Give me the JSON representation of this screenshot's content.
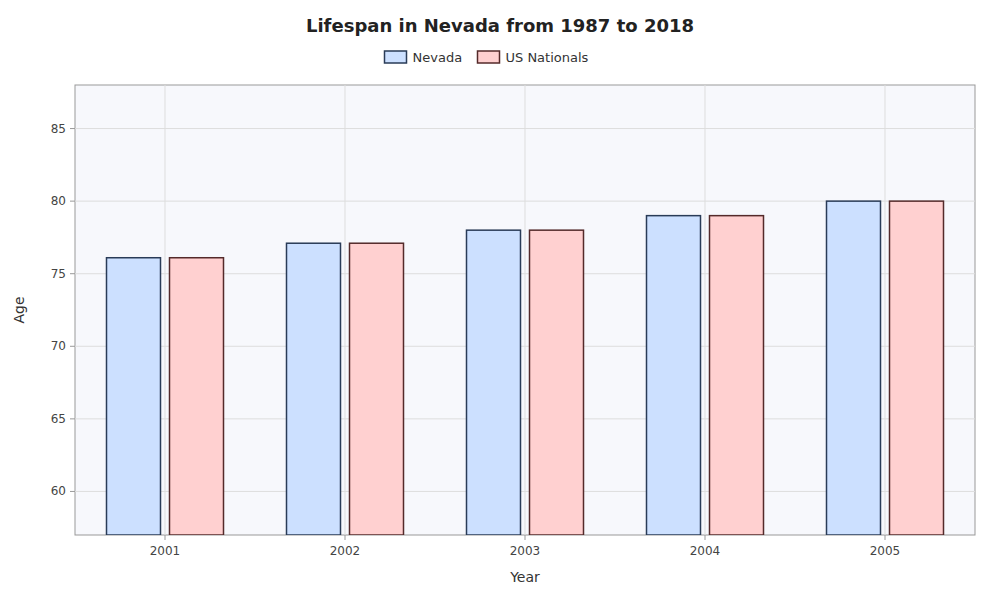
{
  "chart_data": {
    "type": "bar",
    "title": "Lifespan in Nevada from 1987 to 2018",
    "x_label": "Year",
    "y_label": "Age",
    "categories": [
      "2001",
      "2002",
      "2003",
      "2004",
      "2005"
    ],
    "series": [
      {
        "name": "Nevada",
        "color": "#cce0ff",
        "values": [
          76.1,
          77.1,
          78.0,
          79.0,
          80.0
        ]
      },
      {
        "name": "US Nationals",
        "color": "#ffd0d0",
        "values": [
          76.1,
          77.1,
          78.0,
          79.0,
          80.0
        ]
      }
    ],
    "ylim": [
      57,
      88
    ],
    "yticks": [
      60,
      65,
      70,
      75,
      80,
      85
    ],
    "grid": true,
    "legend": "top"
  }
}
